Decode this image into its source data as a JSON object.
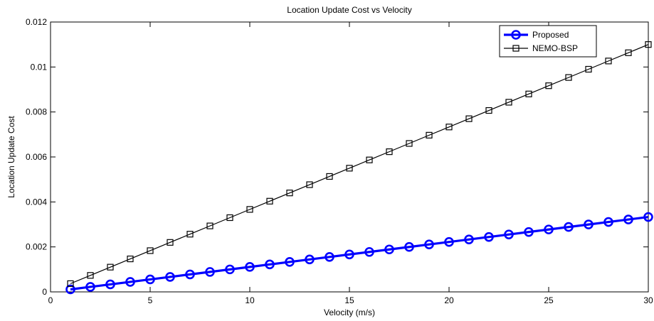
{
  "chart_data": {
    "type": "line",
    "title": "Location Update Cost vs Velocity",
    "xlabel": "Velocity (m/s)",
    "ylabel": "Location Update Cost",
    "xlim": [
      0,
      30
    ],
    "ylim": [
      0,
      0.012
    ],
    "xticks": [
      0,
      5,
      10,
      15,
      20,
      25,
      30
    ],
    "yticks": [
      0,
      0.002,
      0.004,
      0.006,
      0.008,
      0.01,
      0.012
    ],
    "xtick_labels": [
      "0",
      "5",
      "10",
      "15",
      "20",
      "25",
      "30"
    ],
    "ytick_labels": [
      "0",
      "0.002",
      "0.004",
      "0.006",
      "0.008",
      "0.01",
      "0.012"
    ],
    "grid": false,
    "legend_position": "top-right",
    "x": [
      1,
      2,
      3,
      4,
      5,
      6,
      7,
      8,
      9,
      10,
      11,
      12,
      13,
      14,
      15,
      16,
      17,
      18,
      19,
      20,
      21,
      22,
      23,
      24,
      25,
      26,
      27,
      28,
      29,
      30
    ],
    "series": [
      {
        "name": "Proposed",
        "color": "#0000ff",
        "marker": "circle",
        "values": [
          0.000111,
          0.000222,
          0.000333,
          0.000444,
          0.000555,
          0.000666,
          0.000777,
          0.000888,
          0.000999,
          0.00111,
          0.001221,
          0.001332,
          0.001443,
          0.001554,
          0.001665,
          0.001776,
          0.001887,
          0.001998,
          0.002109,
          0.00222,
          0.002331,
          0.002442,
          0.002553,
          0.002664,
          0.002775,
          0.002886,
          0.002997,
          0.003108,
          0.003219,
          0.00333
        ]
      },
      {
        "name": "NEMO-BSP",
        "color": "#000000",
        "marker": "square",
        "values": [
          0.000367,
          0.000733,
          0.0011,
          0.001467,
          0.001833,
          0.0022,
          0.002567,
          0.002933,
          0.0033,
          0.003667,
          0.004033,
          0.0044,
          0.004767,
          0.005133,
          0.0055,
          0.005867,
          0.006233,
          0.0066,
          0.006967,
          0.007333,
          0.0077,
          0.008067,
          0.008433,
          0.0088,
          0.009167,
          0.009533,
          0.0099,
          0.010267,
          0.010633,
          0.011
        ]
      }
    ]
  }
}
